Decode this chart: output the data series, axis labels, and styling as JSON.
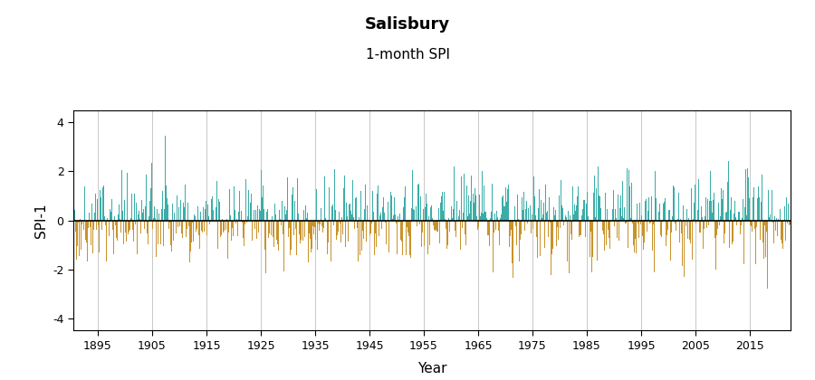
{
  "title": "Salisbury",
  "subtitle": "1-month SPI",
  "ylabel": "SPI-1",
  "xlabel": "Year",
  "ylim": [
    -4.5,
    4.5
  ],
  "yticks": [
    -4,
    -2,
    0,
    2,
    4
  ],
  "xlim_start": 1890.5,
  "xlim_end": 2022.5,
  "xticks": [
    1895,
    1905,
    1915,
    1925,
    1935,
    1945,
    1955,
    1965,
    1975,
    1985,
    1995,
    2005,
    2015
  ],
  "grid_color": "#c8c8c8",
  "color_positive": "#3aada8",
  "color_negative": "#c8922a",
  "zero_line_color": "#000000",
  "background_color": "#ffffff",
  "title_fontsize": 13,
  "subtitle_fontsize": 11,
  "axis_label_fontsize": 11,
  "tick_label_fontsize": 9,
  "start_year": 1890,
  "end_year": 2022,
  "random_seed": 42
}
